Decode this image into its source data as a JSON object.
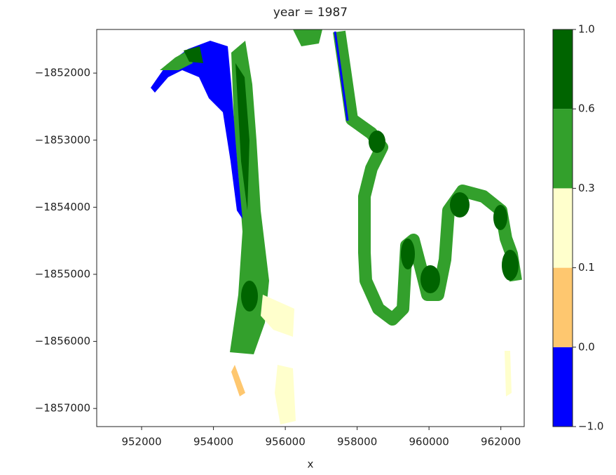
{
  "chart_data": {
    "type": "raster",
    "title": "year = 1987",
    "x_label": "x",
    "xlim": [
      950750,
      962650
    ],
    "ylim": [
      -1857270,
      -1851350
    ],
    "xticks": [
      952000,
      954000,
      956000,
      958000,
      960000,
      962000
    ],
    "yticks": [
      {
        "value": -1852000,
        "label": "−1852000"
      },
      {
        "value": -1853000,
        "label": "−1853000"
      },
      {
        "value": -1854000,
        "label": "−1854000"
      },
      {
        "value": -1855000,
        "label": "−1855000"
      },
      {
        "value": -1856000,
        "label": "−1856000"
      },
      {
        "value": -1857000,
        "label": "−1857000"
      }
    ],
    "colorbar": {
      "levels": [
        {
          "value": -1,
          "label": "−1.0"
        },
        {
          "value": 0,
          "label": "0.0"
        },
        {
          "value": 0.1,
          "label": "0.1"
        },
        {
          "value": 0.3,
          "label": "0.3"
        },
        {
          "value": 0.6,
          "label": "0.6"
        },
        {
          "value": 1,
          "label": "1.0"
        }
      ],
      "colors": [
        "#0000ff",
        "#fec76f",
        "#ffffcc",
        "#33a02c",
        "#006400"
      ]
    }
  }
}
